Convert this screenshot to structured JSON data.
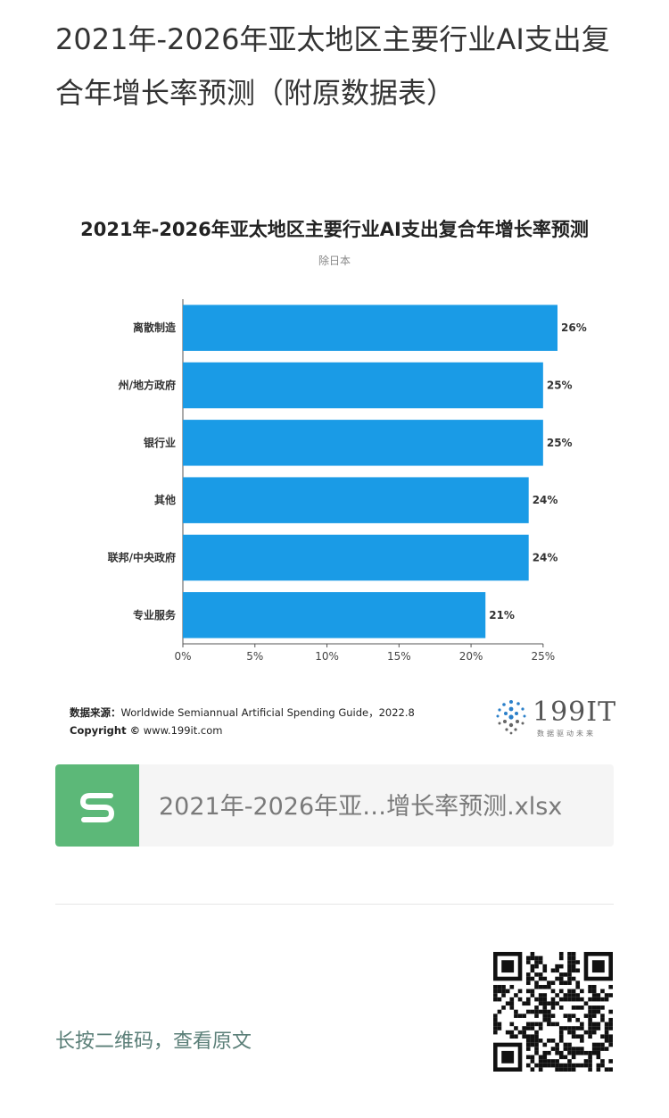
{
  "article": {
    "title": "2021年-2026年亚太地区主要行业AI支出复合年增长率预测（附原数据表）"
  },
  "chart": {
    "title": "2021年-2026年亚太地区主要行业AI支出复合年增长率预测",
    "subtitle": "除日本",
    "source_label": "数据来源：",
    "source_text": "Worldwide Semiannual Artificial Spending Guide，2022.8",
    "copyright_label": "Copyright ©",
    "copyright_text": " www.199it.com",
    "brand": "199IT",
    "brand_tagline": "数据驱动未来"
  },
  "chart_data": {
    "type": "bar",
    "orientation": "horizontal",
    "title": "2021年-2026年亚太地区主要行业AI支出复合年增长率预测",
    "subtitle": "除日本",
    "categories": [
      "离散制造",
      "州/地方政府",
      "银行业",
      "其他",
      "联邦/中央政府",
      "专业服务"
    ],
    "values": [
      26,
      25,
      25,
      24,
      24,
      21
    ],
    "value_labels": [
      "26%",
      "25%",
      "25%",
      "24%",
      "24%",
      "21%"
    ],
    "x_ticks": [
      "0%",
      "5%",
      "10%",
      "15%",
      "20%",
      "25%"
    ],
    "xlim": [
      0,
      26
    ],
    "bar_color": "#1a9be6",
    "grid": false
  },
  "attachment": {
    "file_name": "2021年-2026年亚…增长率预测.xlsx",
    "icon_color": "#5cb878"
  },
  "footer": {
    "qr_hint": "长按二维码，查看原文"
  }
}
